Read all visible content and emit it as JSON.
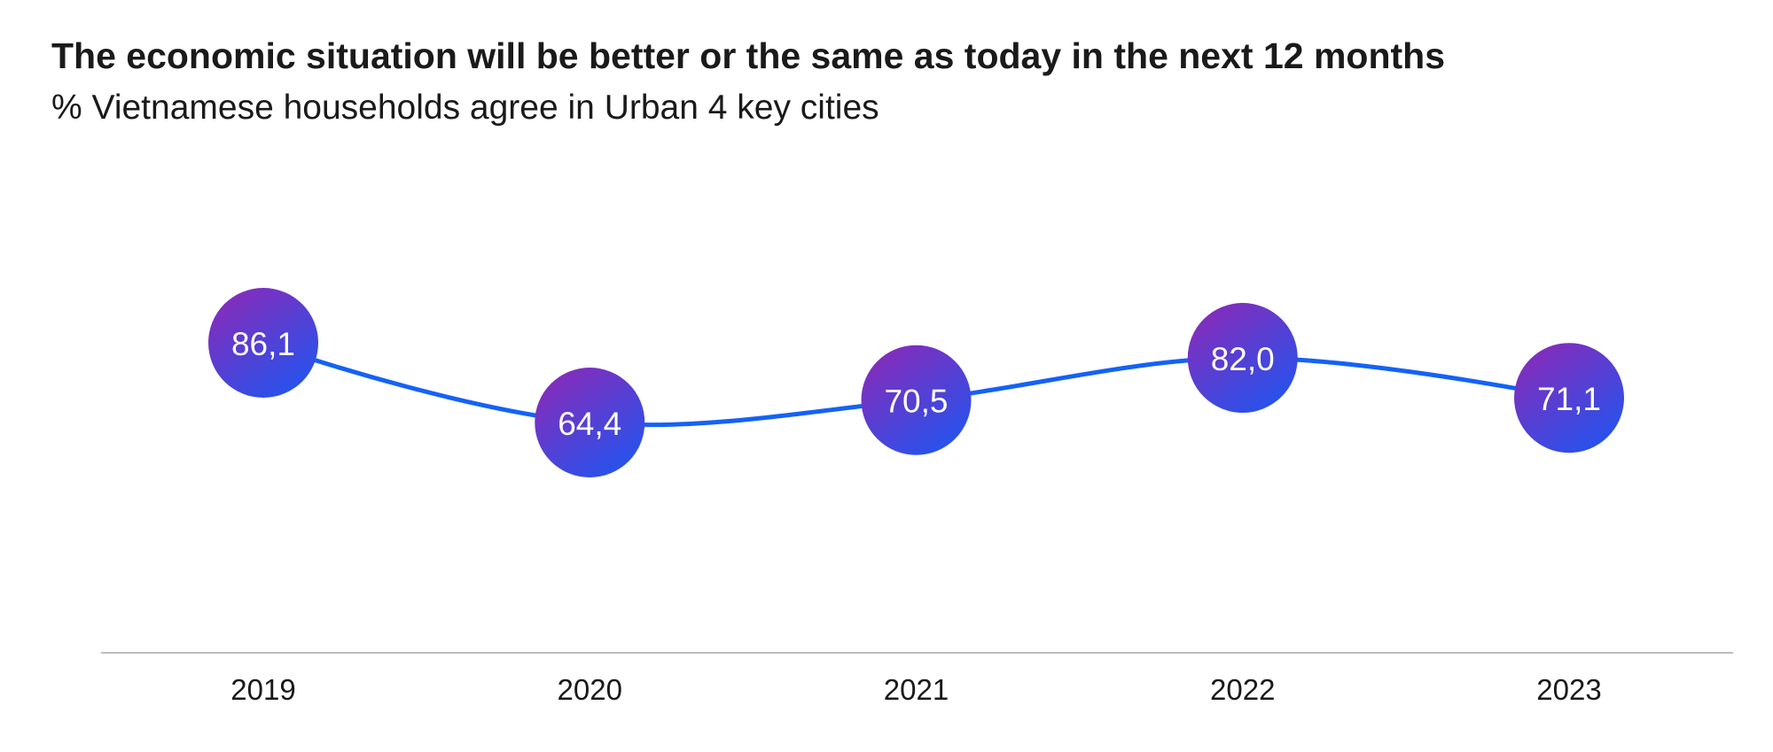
{
  "header": {
    "title": "The economic situation will be better or the same as today in the next 12 months",
    "subtitle": "% Vietnamese households agree in Urban 4 key cities"
  },
  "colors": {
    "line": "#1462f5",
    "bubble_top": "#8a2ab8",
    "bubble_bottom": "#1f55f0",
    "axis": "#bdbdbd",
    "text": "#1a1a1a",
    "label_text": "#ffffff"
  },
  "chart_data": {
    "type": "line",
    "title": "The economic situation will be better or the same as today in the next 12 months",
    "subtitle": "% Vietnamese households agree in Urban 4 key cities",
    "categories": [
      "2019",
      "2020",
      "2021",
      "2022",
      "2023"
    ],
    "series": [
      {
        "values": [
          86.1,
          64.4,
          70.5,
          82.0,
          71.1
        ],
        "labels": [
          "86,1",
          "64,4",
          "70,5",
          "82,0",
          "71,1"
        ]
      }
    ],
    "xlabel": "",
    "ylabel": "",
    "grid": false,
    "legend": "none",
    "data_labels": "in-bubble"
  }
}
